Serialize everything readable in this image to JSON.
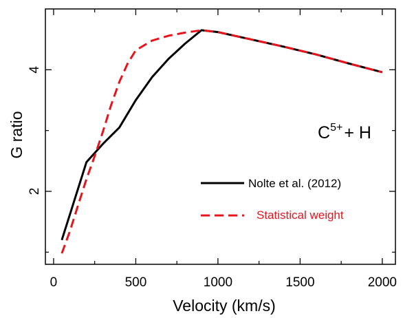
{
  "chart_data": {
    "type": "line",
    "xlabel": "Velocity (km/s)",
    "ylabel": "G ratio",
    "xlim": [
      -50,
      2080
    ],
    "ylim": [
      0.8,
      5.0
    ],
    "xticks": [
      0,
      500,
      1000,
      1500,
      2000
    ],
    "xtick_labels": [
      "0",
      "500",
      "1000",
      "1500",
      "2000"
    ],
    "yticks": [
      2,
      4
    ],
    "ytick_labels": [
      "2",
      "4"
    ],
    "grid": false,
    "legend_position": "center-right",
    "annotation": {
      "base": "C",
      "superscript": "5+",
      "suffix": "+ H"
    },
    "series": [
      {
        "name": "Nolte et al. (2012)",
        "color": "#000000",
        "dash": "solid",
        "x": [
          50,
          200,
          300,
          400,
          500,
          600,
          700,
          800,
          900,
          1000,
          1200,
          1400,
          1600,
          1800,
          2000
        ],
        "y": [
          1.2,
          2.48,
          2.78,
          3.05,
          3.5,
          3.88,
          4.18,
          4.43,
          4.65,
          4.62,
          4.5,
          4.38,
          4.25,
          4.1,
          3.96
        ]
      },
      {
        "name": "Statistical weight",
        "color": "#e8141c",
        "dash": "dashed",
        "x": [
          50,
          100,
          150,
          200,
          250,
          300,
          350,
          400,
          450,
          500,
          600,
          700,
          800,
          900,
          1000,
          1200,
          1400,
          1600,
          1800,
          2000
        ],
        "y": [
          0.98,
          1.35,
          1.78,
          2.2,
          2.58,
          2.98,
          3.42,
          3.8,
          4.1,
          4.32,
          4.48,
          4.56,
          4.61,
          4.65,
          4.62,
          4.5,
          4.38,
          4.25,
          4.1,
          3.96
        ]
      }
    ]
  }
}
